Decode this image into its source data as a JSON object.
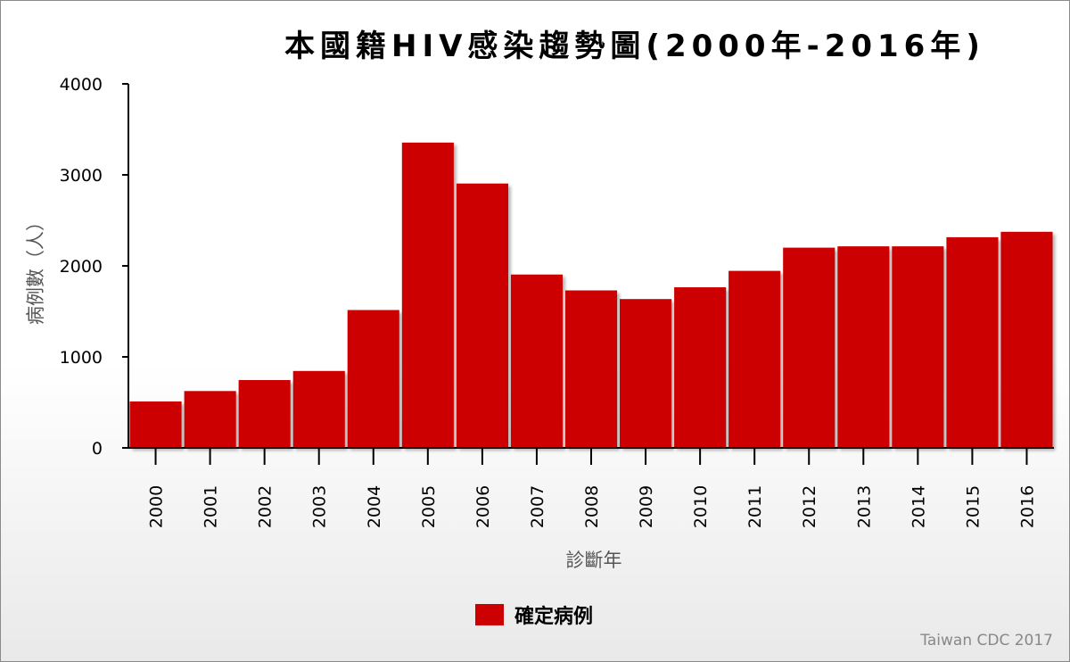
{
  "chart_data": {
    "type": "bar",
    "title": "本國籍HIV感染趨勢圖(2000年-2016年)",
    "xlabel": "診斷年",
    "ylabel": "病例數（人）",
    "ylim": [
      0,
      4000
    ],
    "yticks": [
      "0",
      "1000",
      "2000",
      "3000",
      "4000"
    ],
    "categories": [
      "2000",
      "2001",
      "2002",
      "2003",
      "2004",
      "2005",
      "2006",
      "2007",
      "2008",
      "2009",
      "2010",
      "2011",
      "2012",
      "2013",
      "2014",
      "2015",
      "2016"
    ],
    "series": [
      {
        "name": "確定病例",
        "color": "#cc0000",
        "values": [
          510,
          625,
          745,
          845,
          1515,
          3355,
          2905,
          1905,
          1730,
          1635,
          1765,
          1945,
          2200,
          2215,
          2215,
          2315,
          2375
        ]
      }
    ],
    "grid": false,
    "legend_position": "bottom-center",
    "credit": "Taiwan CDC 2017"
  }
}
